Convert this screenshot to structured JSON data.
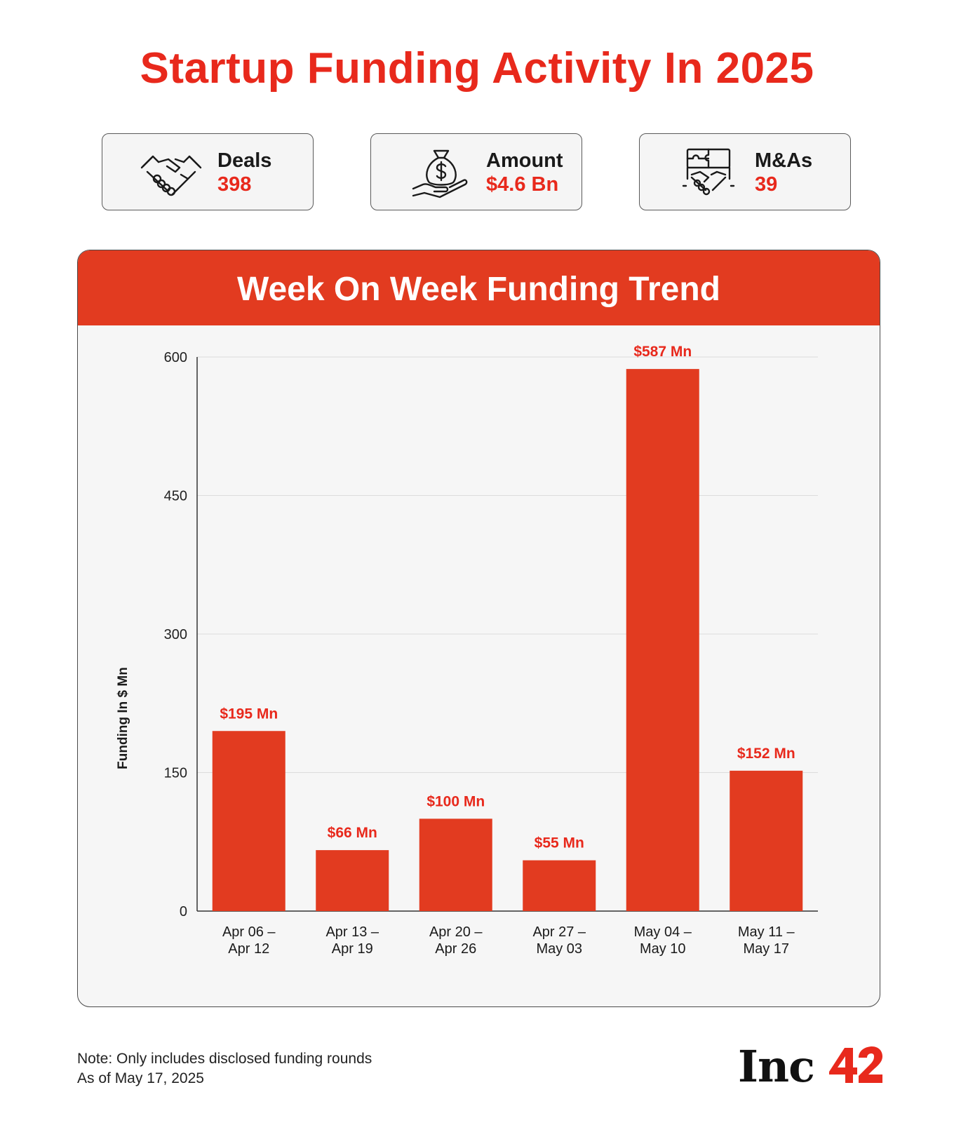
{
  "title": "Startup Funding Activity In 2025",
  "stats": [
    {
      "label": "Deals",
      "value": "398",
      "icon": "handshake-icon"
    },
    {
      "label": "Amount",
      "value": "$4.6 Bn",
      "icon": "money-bag-hand-icon"
    },
    {
      "label": "M&As",
      "value": "39",
      "icon": "puzzle-handshake-icon"
    }
  ],
  "colors": {
    "accent": "#e8291c",
    "bar": "#e23b20",
    "header": "#e23b20"
  },
  "chart_data": {
    "type": "bar",
    "title": "Week On Week Funding Trend",
    "ylabel": "Funding In $ Mn",
    "xlabel": "",
    "ylim": [
      0,
      600
    ],
    "yticks": [
      0,
      150,
      300,
      450,
      600
    ],
    "grid": true,
    "categories": [
      [
        "Apr 06 –",
        "Apr 12"
      ],
      [
        "Apr 13 –",
        "Apr 19"
      ],
      [
        "Apr 20 –",
        "Apr 26"
      ],
      [
        "Apr 27 –",
        "May 03"
      ],
      [
        "May 04 –",
        "May 10"
      ],
      [
        "May 11 –",
        "May 17"
      ]
    ],
    "values": [
      195,
      66,
      100,
      55,
      587,
      152
    ],
    "data_labels": [
      "$195 Mn",
      "$66 Mn",
      "$100 Mn",
      "$55 Mn",
      "$587 Mn",
      "$152 Mn"
    ]
  },
  "footer": {
    "note": "Note: Only includes disclosed funding rounds",
    "as_of": "As of May 17, 2025",
    "brand": "Inc",
    "brand_number": "42"
  }
}
